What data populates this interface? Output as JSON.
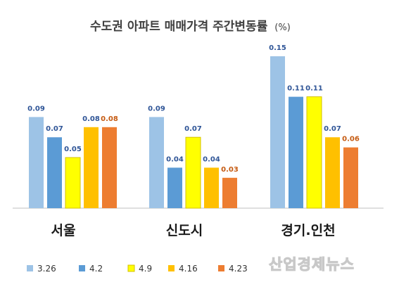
{
  "chart_data": {
    "type": "bar",
    "title": "수도권 아파트 매매가격 주간변동률",
    "title_unit": "(%)",
    "categories": [
      "서울",
      "신도시",
      "경기.인천"
    ],
    "series": [
      {
        "name": "3.26",
        "values": [
          0.09,
          0.09,
          0.15
        ],
        "color": "#9DC3E6",
        "label_color": "#2F5597"
      },
      {
        "name": "4.2",
        "values": [
          0.07,
          0.04,
          0.11
        ],
        "color": "#5B9BD5",
        "label_color": "#2F5597"
      },
      {
        "name": "4.9",
        "values": [
          0.05,
          0.07,
          0.11
        ],
        "color": "#FFFF00",
        "label_color": "#2F5597"
      },
      {
        "name": "4.16",
        "values": [
          0.08,
          0.04,
          0.07
        ],
        "color": "#FFC000",
        "label_color": "#2F5597"
      },
      {
        "name": "4.23",
        "values": [
          0.08,
          0.03,
          0.06
        ],
        "color": "#ED7D31",
        "label_color": "#C55A11"
      }
    ],
    "ylim": [
      0,
      0.16
    ],
    "grid": false,
    "legend_position": "bottom-left"
  },
  "watermark": "산업경제뉴스"
}
